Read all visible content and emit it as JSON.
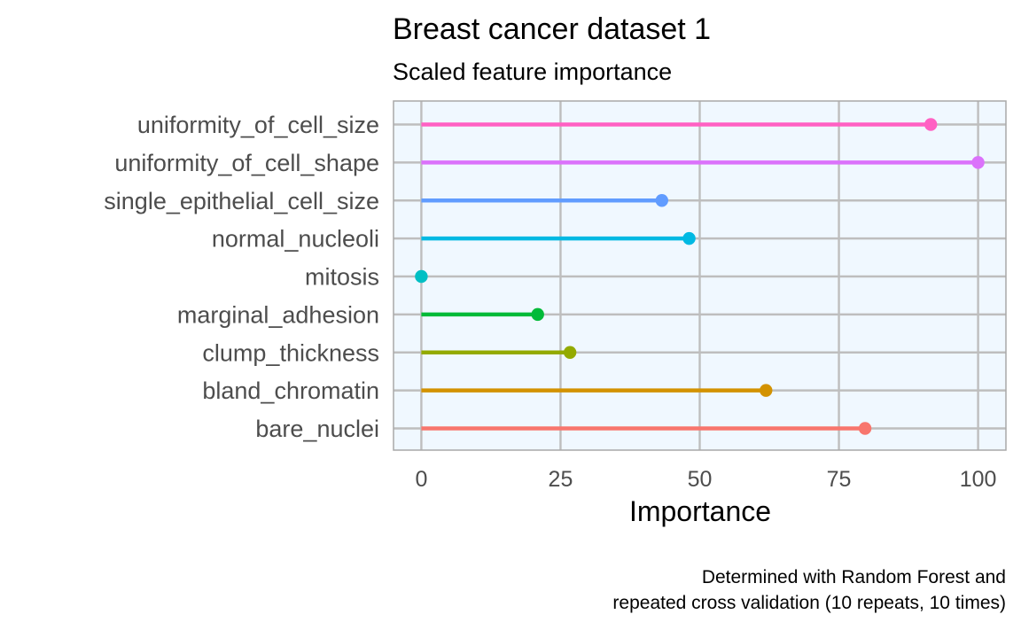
{
  "chart_data": {
    "type": "lollipop",
    "title": "Breast cancer dataset 1",
    "subtitle": "Scaled feature importance",
    "xlabel": "Importance",
    "ylabel": "",
    "xlim": [
      -5,
      105
    ],
    "xticks": [
      0,
      25,
      50,
      75,
      100
    ],
    "grid": true,
    "legend": "none",
    "caption_lines": [
      "Determined with Random Forest and",
      "repeated cross validation (10 repeats, 10 times)"
    ],
    "categories": [
      "uniformity_of_cell_size",
      "uniformity_of_cell_shape",
      "single_epithelial_cell_size",
      "normal_nucleoli",
      "mitosis",
      "marginal_adhesion",
      "clump_thickness",
      "bland_chromatin",
      "bare_nuclei"
    ],
    "values": [
      91.5,
      100,
      43.2,
      48.1,
      0,
      20.9,
      26.7,
      61.9,
      79.7
    ],
    "colors": [
      "#FF61C3",
      "#DB72FB",
      "#619CFF",
      "#00B9E3",
      "#00BFC4",
      "#00BA38",
      "#93AA00",
      "#D39200",
      "#F8766D"
    ],
    "panel_background": "#F0F8FF",
    "grid_color": "#BEBEBE"
  }
}
